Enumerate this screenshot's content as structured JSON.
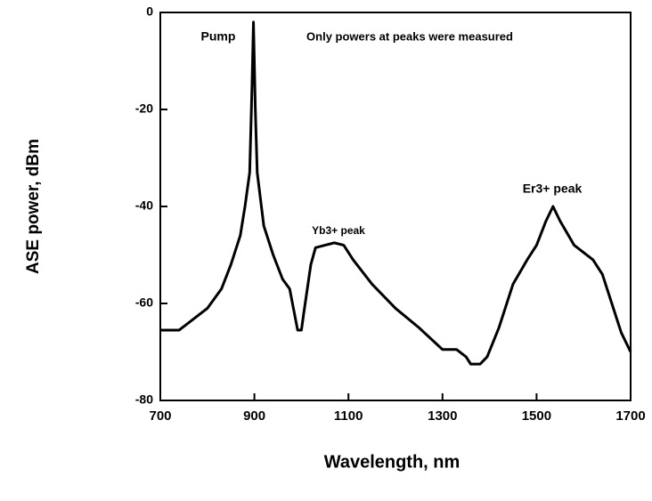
{
  "chart_data": {
    "type": "line",
    "xlabel": "Wavelength,  nm",
    "ylabel": "ASE power, dBm",
    "annotations": [
      "Pump",
      "Only powers at peaks were measured",
      "Yb3+  peak",
      "Er3+  peak"
    ],
    "x": [
      700,
      740,
      760,
      800,
      830,
      850,
      870,
      880,
      890,
      895,
      898,
      902,
      906,
      920,
      940,
      960,
      975,
      985,
      992,
      1000,
      1005,
      1020,
      1030,
      1050,
      1070,
      1090,
      1110,
      1150,
      1200,
      1250,
      1300,
      1330,
      1350,
      1360,
      1380,
      1395,
      1420,
      1450,
      1480,
      1500,
      1520,
      1535,
      1550,
      1580,
      1620,
      1640,
      1660,
      1680,
      1700
    ],
    "series": [
      {
        "color": "#000000",
        "values": [
          -65.5,
          -65.5,
          -64,
          -61,
          -57,
          -52,
          -46,
          -40,
          -33,
          -15,
          -2,
          -20,
          -33,
          -44,
          -50,
          -55,
          -57,
          -62,
          -65.5,
          -65.5,
          -62,
          -52,
          -48.5,
          -48,
          -47.5,
          -48,
          -51,
          -56,
          -61,
          -65,
          -69.5,
          -69.5,
          -71,
          -72.5,
          -72.5,
          -71,
          -65,
          -56,
          -51,
          -48,
          -43,
          -40,
          -43,
          -48,
          -51,
          -54,
          -60,
          -66,
          -70
        ]
      }
    ],
    "xlim": [
      700,
      1700
    ],
    "xticks": [
      700,
      900,
      1100,
      1300,
      1500,
      1700
    ],
    "ylim": [
      -80,
      0
    ],
    "yticks": [
      0,
      -20,
      -40,
      -60,
      -80
    ]
  }
}
